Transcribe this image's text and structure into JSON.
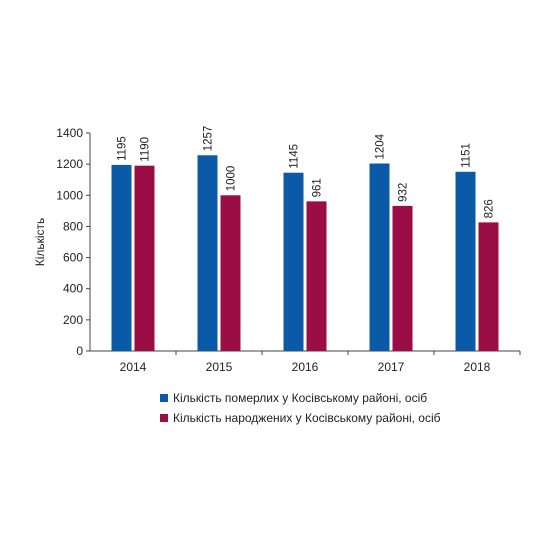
{
  "chart_data": {
    "type": "bar",
    "categories": [
      "2014",
      "2015",
      "2016",
      "2017",
      "2018"
    ],
    "series": [
      {
        "name": "Кількість померлих у Косівському районі, осіб",
        "color": "#0a5aa8",
        "values": [
          1195,
          1257,
          1145,
          1204,
          1151
        ]
      },
      {
        "name": "Кількість народжених у Косівському районі, осіб",
        "color": "#9b0d45",
        "values": [
          1190,
          1000,
          961,
          932,
          826
        ]
      }
    ],
    "xlabel": "",
    "ylabel": "Кількість",
    "ylim": [
      0,
      1400
    ],
    "yticks": [
      0,
      200,
      400,
      600,
      800,
      1000,
      1200,
      1400
    ],
    "grid": false,
    "legend_position": "bottom"
  }
}
